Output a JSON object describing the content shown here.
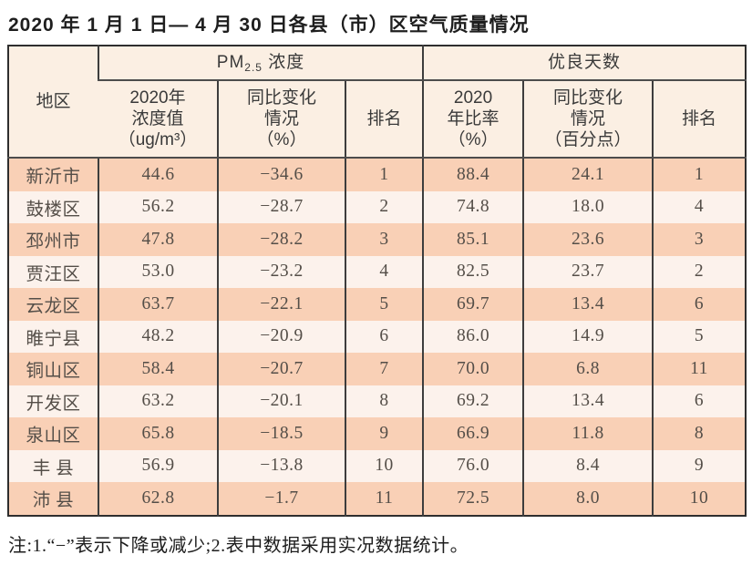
{
  "title": "2020 年 1 月 1 日— 4 月 30 日各县（市）区空气质量情况",
  "footnote": "注:1.“−”表示下降或减少;2.表中数据采用实况数据统计。",
  "colors": {
    "row_odd_bg": "#f9d0b6",
    "row_even_bg": "#fcf2ec",
    "header_bg": "#fbefe3",
    "border": "#3d3d3d",
    "text": "#544e48"
  },
  "table": {
    "header": {
      "region": "地区",
      "pm_main": "PM",
      "pm_sub": "2.5",
      "pm_rest": " 浓度",
      "good_group": "优良天数",
      "pm_value": "2020年\n浓度值\n（ug/m³）",
      "pm_change": "同比变化\n情况\n（%）",
      "pm_rank": "排名",
      "good_ratio": "2020\n年比率\n（%）",
      "good_change": "同比变化\n情况\n（百分点）",
      "good_rank": "排名"
    },
    "rows": [
      {
        "region": "新沂市",
        "pm_value": "44.6",
        "pm_change": "−34.6",
        "pm_rank": "1",
        "good_ratio": "88.4",
        "good_change": "24.1",
        "good_rank": "1"
      },
      {
        "region": "鼓楼区",
        "pm_value": "56.2",
        "pm_change": "−28.7",
        "pm_rank": "2",
        "good_ratio": "74.8",
        "good_change": "18.0",
        "good_rank": "4"
      },
      {
        "region": "邳州市",
        "pm_value": "47.8",
        "pm_change": "−28.2",
        "pm_rank": "3",
        "good_ratio": "85.1",
        "good_change": "23.6",
        "good_rank": "3"
      },
      {
        "region": "贾汪区",
        "pm_value": "53.0",
        "pm_change": "−23.2",
        "pm_rank": "4",
        "good_ratio": "82.5",
        "good_change": "23.7",
        "good_rank": "2"
      },
      {
        "region": "云龙区",
        "pm_value": "63.7",
        "pm_change": "−22.1",
        "pm_rank": "5",
        "good_ratio": "69.7",
        "good_change": "13.4",
        "good_rank": "6"
      },
      {
        "region": "睢宁县",
        "pm_value": "48.2",
        "pm_change": "−20.9",
        "pm_rank": "6",
        "good_ratio": "86.0",
        "good_change": "14.9",
        "good_rank": "5"
      },
      {
        "region": "铜山区",
        "pm_value": "58.4",
        "pm_change": "−20.7",
        "pm_rank": "7",
        "good_ratio": "70.0",
        "good_change": "6.8",
        "good_rank": "11"
      },
      {
        "region": "开发区",
        "pm_value": "63.2",
        "pm_change": "−20.1",
        "pm_rank": "8",
        "good_ratio": "69.2",
        "good_change": "13.4",
        "good_rank": "6"
      },
      {
        "region": "泉山区",
        "pm_value": "65.8",
        "pm_change": "−18.5",
        "pm_rank": "9",
        "good_ratio": "66.9",
        "good_change": "11.8",
        "good_rank": "8"
      },
      {
        "region": "丰 县",
        "pm_value": "56.9",
        "pm_change": "−13.8",
        "pm_rank": "10",
        "good_ratio": "76.0",
        "good_change": "8.4",
        "good_rank": "9"
      },
      {
        "region": "沛 县",
        "pm_value": "62.8",
        "pm_change": "−1.7",
        "pm_rank": "11",
        "good_ratio": "72.5",
        "good_change": "8.0",
        "good_rank": "10"
      }
    ]
  }
}
